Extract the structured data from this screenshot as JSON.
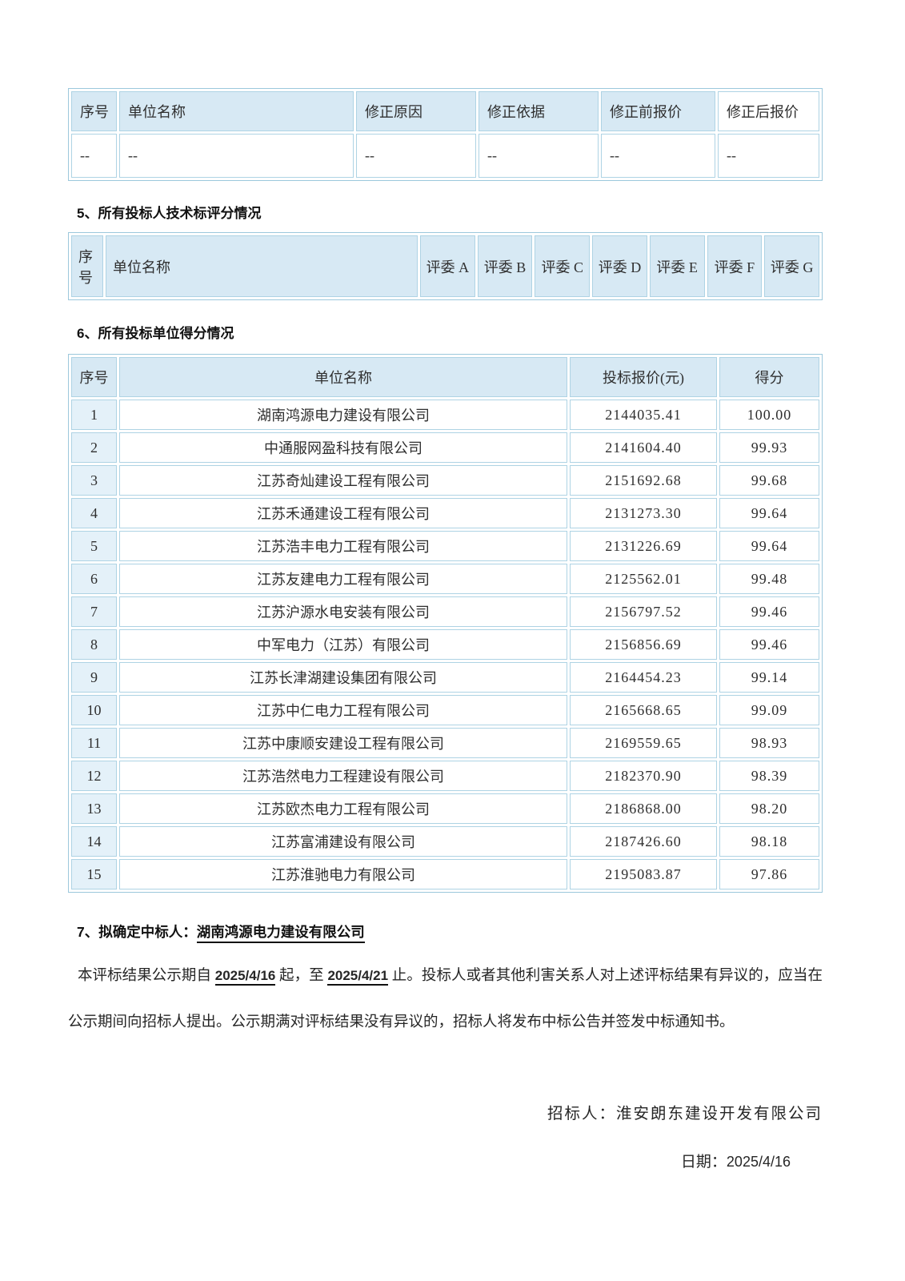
{
  "colors": {
    "header_cell_bg": "#d7e9f4",
    "index_cell_bg": "#e4f1f9",
    "table_border": "#aed3e4",
    "table_outer_border": "#9cc8dc",
    "text": "#2f2f2f"
  },
  "correction_table": {
    "headers": [
      "序号",
      "单位名称",
      "修正原因",
      "修正依据",
      "修正前报价",
      "修正后报价"
    ],
    "row": [
      "--",
      "--",
      "--",
      "--",
      "--",
      "--"
    ]
  },
  "sections": {
    "s5_title": "5、所有投标人技术标评分情况",
    "s6_title": "6、所有投标单位得分情况"
  },
  "tech_table": {
    "headers": [
      "序号",
      "单位名称",
      "评委 A",
      "评委 B",
      "评委 C",
      "评委 D",
      "评委 E",
      "评委 F",
      "评委 G"
    ]
  },
  "score_table": {
    "headers": [
      "序号",
      "单位名称",
      "投标报价(元)",
      "得分"
    ],
    "rows": [
      {
        "no": "1",
        "name": "湖南鸿源电力建设有限公司",
        "price": "2144035.41",
        "score": "100.00"
      },
      {
        "no": "2",
        "name": "中通服网盈科技有限公司",
        "price": "2141604.40",
        "score": "99.93"
      },
      {
        "no": "3",
        "name": "江苏奇灿建设工程有限公司",
        "price": "2151692.68",
        "score": "99.68"
      },
      {
        "no": "4",
        "name": "江苏禾通建设工程有限公司",
        "price": "2131273.30",
        "score": "99.64"
      },
      {
        "no": "5",
        "name": "江苏浩丰电力工程有限公司",
        "price": "2131226.69",
        "score": "99.64"
      },
      {
        "no": "6",
        "name": "江苏友建电力工程有限公司",
        "price": "2125562.01",
        "score": "99.48"
      },
      {
        "no": "7",
        "name": "江苏沪源水电安装有限公司",
        "price": "2156797.52",
        "score": "99.46"
      },
      {
        "no": "8",
        "name": "中军电力（江苏）有限公司",
        "price": "2156856.69",
        "score": "99.46"
      },
      {
        "no": "9",
        "name": "江苏长津湖建设集团有限公司",
        "price": "2164454.23",
        "score": "99.14"
      },
      {
        "no": "10",
        "name": "江苏中仁电力工程有限公司",
        "price": "2165668.65",
        "score": "99.09"
      },
      {
        "no": "11",
        "name": "江苏中康顺安建设工程有限公司",
        "price": "2169559.65",
        "score": "98.93"
      },
      {
        "no": "12",
        "name": "江苏浩然电力工程建设有限公司",
        "price": "2182370.90",
        "score": "98.39"
      },
      {
        "no": "13",
        "name": "江苏欧杰电力工程有限公司",
        "price": "2186868.00",
        "score": "98.20"
      },
      {
        "no": "14",
        "name": "江苏富浦建设有限公司",
        "price": "2187426.60",
        "score": "98.18"
      },
      {
        "no": "15",
        "name": "江苏淮驰电力有限公司",
        "price": "2195083.87",
        "score": "97.86"
      }
    ]
  },
  "s7": {
    "prefix": "7、拟确定中标人：",
    "winner": "湖南鸿源电力建设有限公司"
  },
  "notice": {
    "part1": "本评标结果公示期自 ",
    "date_from": "2025/4/16",
    "part2": " 起，至 ",
    "date_to": "2025/4/21",
    "part3": " 止。投标人或者其他利害关系人对上述评标结果有异议的，应当在公示期间向招标人提出。公示期满对评标结果没有异议的，招标人将发布中标公告并签发中标通知书。"
  },
  "footer": {
    "tenderer": "招标人：淮安朗东建设开发有限公司",
    "date_label": "日期：",
    "date_value": "2025/4/16"
  }
}
